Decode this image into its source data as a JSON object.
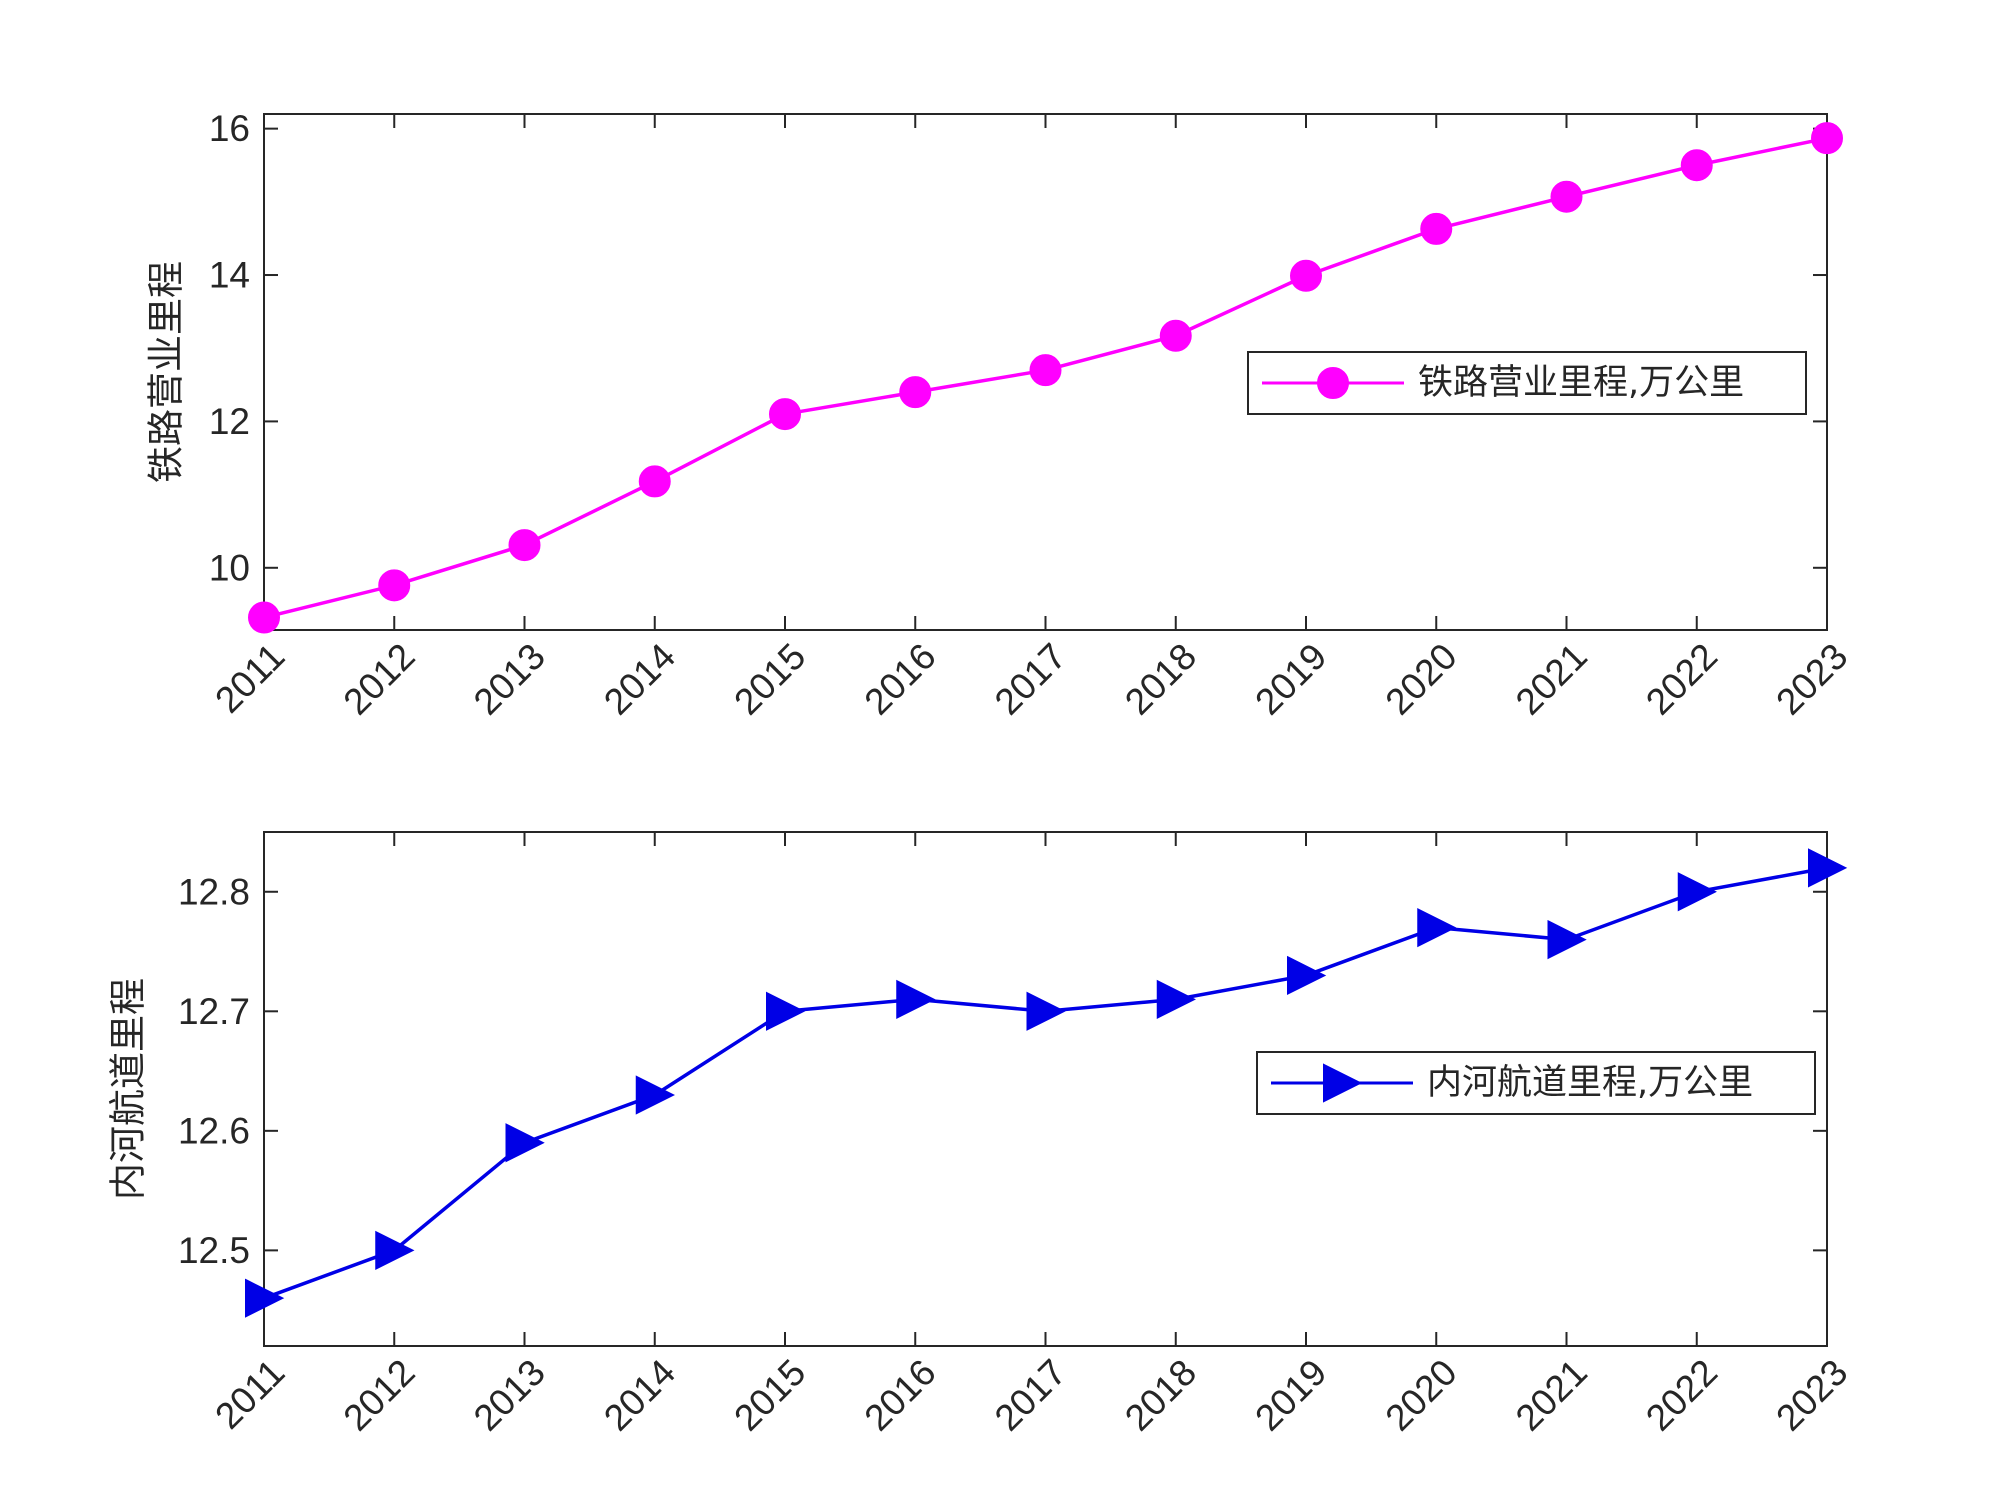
{
  "chart_data": [
    {
      "type": "line",
      "categories": [
        "2011",
        "2012",
        "2013",
        "2014",
        "2015",
        "2016",
        "2017",
        "2018",
        "2019",
        "2020",
        "2021",
        "2022",
        "2023"
      ],
      "series": [
        {
          "name": "铁路营业里程,万公里",
          "color": "#ff00ff",
          "marker": "circle",
          "values": [
            9.32,
            9.76,
            10.31,
            11.18,
            12.1,
            12.4,
            12.7,
            13.17,
            13.99,
            14.63,
            15.07,
            15.5,
            15.87
          ]
        }
      ],
      "ylabel": "铁路营业里程",
      "ylim": [
        9.15,
        16.2
      ],
      "yticks": [
        10,
        12,
        14,
        16
      ],
      "ytick_labels": [
        "10",
        "12",
        "14",
        "16"
      ],
      "legend": "right",
      "grid": false
    },
    {
      "type": "line",
      "categories": [
        "2011",
        "2012",
        "2013",
        "2014",
        "2015",
        "2016",
        "2017",
        "2018",
        "2019",
        "2020",
        "2021",
        "2022",
        "2023"
      ],
      "series": [
        {
          "name": "内河航道里程,万公里",
          "color": "#0000e6",
          "marker": "triangle-right",
          "values": [
            12.46,
            12.5,
            12.59,
            12.63,
            12.7,
            12.71,
            12.7,
            12.71,
            12.73,
            12.77,
            12.76,
            12.8,
            12.82
          ]
        }
      ],
      "ylabel": "内河航道里程",
      "ylim": [
        12.42,
        12.85
      ],
      "yticks": [
        12.5,
        12.6,
        12.7,
        12.8
      ],
      "ytick_labels": [
        "12.5",
        "12.6",
        "12.7",
        "12.8"
      ],
      "legend": "right",
      "grid": false
    }
  ]
}
